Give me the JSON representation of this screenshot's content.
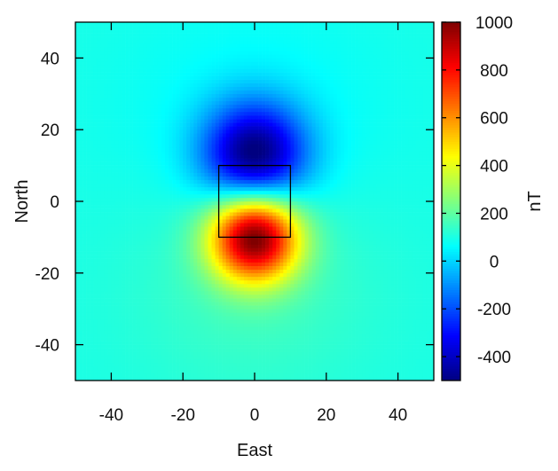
{
  "chart_data": {
    "type": "heatmap",
    "title": "",
    "xlabel": "East",
    "ylabel": "North",
    "xlim": [
      -50,
      50
    ],
    "ylim": [
      -50,
      50
    ],
    "x_ticks": [
      -40,
      -20,
      0,
      20,
      40
    ],
    "y_ticks": [
      -40,
      -20,
      0,
      20,
      40
    ],
    "x_tick_labels": [
      "-40",
      "-20",
      "0",
      "20",
      "40"
    ],
    "y_tick_labels": [
      "-40",
      "-20",
      "0",
      "20",
      "40"
    ],
    "colorbar": {
      "label": "nT",
      "range": [
        -500,
        1000
      ],
      "ticks": [
        -400,
        -200,
        0,
        200,
        400,
        600,
        800,
        1000
      ],
      "tick_labels": [
        "-400",
        "-200",
        "0",
        "200",
        "400",
        "600",
        "800",
        "1000"
      ],
      "colormap": "jet"
    },
    "field_features": {
      "background_nT": 100,
      "positive_anomaly": {
        "east": 0,
        "north": -10,
        "peak_nT": 1000
      },
      "negative_anomaly": {
        "east": 0,
        "north": 13,
        "min_nT": -500
      }
    },
    "source_outline": {
      "east": [
        -10,
        10
      ],
      "north": [
        -10,
        10
      ]
    },
    "grid": false,
    "legend": "colorbar-right"
  }
}
